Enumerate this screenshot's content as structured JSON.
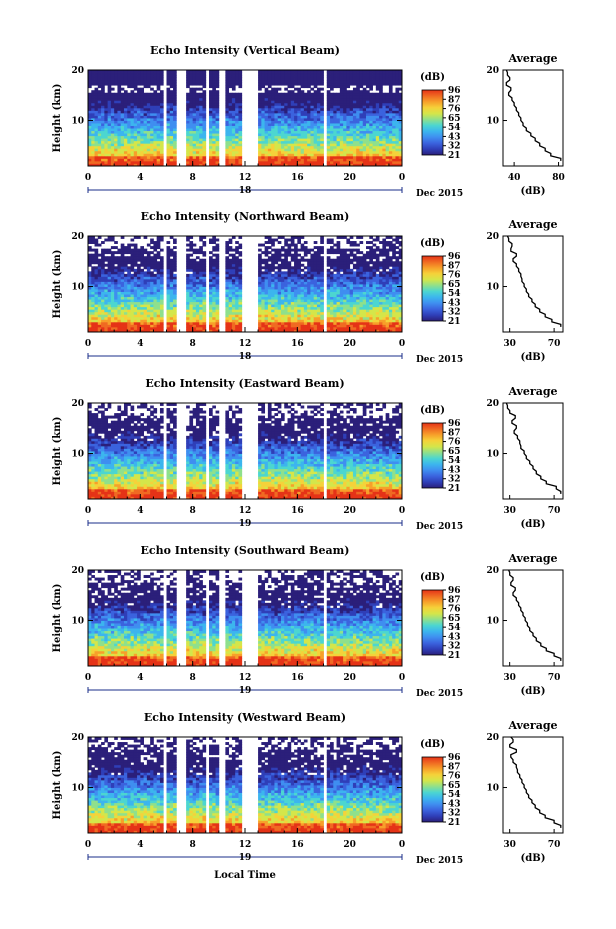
{
  "figure": {
    "xlabel": "Local Time",
    "date_label": "Dec 2015"
  },
  "colorscale": [
    "#2b1f7a",
    "#2f3fb8",
    "#3b63de",
    "#3f8ef0",
    "#3cb5ee",
    "#4cd6d0",
    "#8fe08c",
    "#d4e64a",
    "#f5d23a",
    "#f7a02a",
    "#f06a22",
    "#e53317"
  ],
  "chart_data": [
    {
      "type": "heatmap",
      "title": "Echo Intensity (Vertical Beam)",
      "ylabel": "Height (km)",
      "y_ticks": [
        "20",
        "10"
      ],
      "x_ticks": [
        "0",
        "4",
        "8",
        "12",
        "16",
        "20",
        "0"
      ],
      "day_label": "18",
      "colorbar_unit": "(dB)",
      "colorbar_ticks": [
        "96",
        "87",
        "76",
        "65",
        "54",
        "43",
        "32",
        "21"
      ],
      "profile": {
        "title": "Average",
        "xlabel": "(dB)",
        "x_ticks": [
          "40",
          "80"
        ],
        "y_ticks": [
          "20",
          "10"
        ],
        "xlim": [
          30,
          84
        ],
        "heights": [
          2,
          3,
          4,
          5,
          6,
          7,
          8,
          9,
          10,
          11,
          12,
          13,
          14,
          15,
          16,
          17,
          18,
          19,
          20
        ],
        "values": [
          82,
          73,
          68,
          63,
          59,
          55,
          51,
          48,
          46,
          44,
          42,
          40,
          38,
          35,
          37,
          33,
          36,
          34,
          33
        ]
      }
    },
    {
      "type": "heatmap",
      "title": "Echo Intensity (Northward Beam)",
      "ylabel": "Height (km)",
      "y_ticks": [
        "20",
        "10"
      ],
      "x_ticks": [
        "0",
        "4",
        "8",
        "12",
        "16",
        "20",
        "0"
      ],
      "day_label": "18",
      "colorbar_unit": "(dB)",
      "colorbar_ticks": [
        "96",
        "87",
        "76",
        "65",
        "54",
        "43",
        "32",
        "21"
      ],
      "profile": {
        "title": "Average",
        "xlabel": "(dB)",
        "x_ticks": [
          "30",
          "70"
        ],
        "y_ticks": [
          "20",
          "10"
        ],
        "xlim": [
          24,
          78
        ],
        "heights": [
          2,
          3,
          4,
          5,
          6,
          7,
          8,
          9,
          10,
          11,
          12,
          13,
          14,
          15,
          16,
          17,
          18,
          19,
          20
        ],
        "values": [
          76,
          68,
          62,
          57,
          53,
          50,
          47,
          45,
          43,
          41,
          40,
          38,
          36,
          33,
          36,
          31,
          32,
          29,
          28
        ]
      }
    },
    {
      "type": "heatmap",
      "title": "Echo Intensity (Eastward Beam)",
      "ylabel": "Height (km)",
      "y_ticks": [
        "20",
        "10"
      ],
      "x_ticks": [
        "0",
        "4",
        "8",
        "12",
        "16",
        "20",
        "0"
      ],
      "day_label": "19",
      "colorbar_unit": "(dB)",
      "colorbar_ticks": [
        "96",
        "87",
        "76",
        "65",
        "54",
        "43",
        "32",
        "21"
      ],
      "profile": {
        "title": "Average",
        "xlabel": "(dB)",
        "x_ticks": [
          "30",
          "70"
        ],
        "y_ticks": [
          "20",
          "10"
        ],
        "xlim": [
          24,
          78
        ],
        "heights": [
          2,
          3,
          4,
          5,
          6,
          7,
          8,
          9,
          10,
          11,
          12,
          13,
          14,
          15,
          16,
          17,
          18,
          19,
          20
        ],
        "values": [
          76,
          72,
          63,
          58,
          54,
          51,
          48,
          45,
          43,
          40,
          39,
          37,
          34,
          36,
          32,
          35,
          30,
          28,
          27
        ]
      }
    },
    {
      "type": "heatmap",
      "title": "Echo Intensity (Southward Beam)",
      "ylabel": "Height (km)",
      "y_ticks": [
        "20",
        "10"
      ],
      "x_ticks": [
        "0",
        "4",
        "8",
        "12",
        "16",
        "20",
        "0"
      ],
      "day_label": "19",
      "colorbar_unit": "(dB)",
      "colorbar_ticks": [
        "96",
        "87",
        "76",
        "65",
        "54",
        "43",
        "32",
        "21"
      ],
      "profile": {
        "title": "Average",
        "xlabel": "(dB)",
        "x_ticks": [
          "30",
          "70"
        ],
        "y_ticks": [
          "20",
          "10"
        ],
        "xlim": [
          24,
          78
        ],
        "heights": [
          2,
          3,
          4,
          5,
          6,
          7,
          8,
          9,
          10,
          11,
          12,
          13,
          14,
          15,
          16,
          17,
          18,
          19,
          20
        ],
        "values": [
          76,
          70,
          63,
          58,
          54,
          51,
          48,
          46,
          44,
          42,
          40,
          38,
          36,
          33,
          35,
          31,
          33,
          30,
          29
        ]
      }
    },
    {
      "type": "heatmap",
      "title": "Echo Intensity (Westward Beam)",
      "ylabel": "Height (km)",
      "y_ticks": [
        "20",
        "10"
      ],
      "x_ticks": [
        "0",
        "4",
        "8",
        "12",
        "16",
        "20",
        "0"
      ],
      "day_label": "19",
      "colorbar_unit": "(dB)",
      "colorbar_ticks": [
        "96",
        "87",
        "76",
        "65",
        "54",
        "43",
        "32",
        "21"
      ],
      "profile": {
        "title": "Average",
        "xlabel": "(dB)",
        "x_ticks": [
          "30",
          "70"
        ],
        "y_ticks": [
          "20",
          "10"
        ],
        "xlim": [
          24,
          78
        ],
        "heights": [
          2,
          3,
          4,
          5,
          6,
          7,
          8,
          9,
          10,
          11,
          12,
          13,
          14,
          15,
          16,
          17,
          18,
          19,
          20
        ],
        "values": [
          76,
          70,
          62,
          57,
          53,
          50,
          47,
          45,
          43,
          41,
          39,
          37,
          36,
          33,
          31,
          36,
          30,
          33,
          31
        ]
      }
    }
  ]
}
